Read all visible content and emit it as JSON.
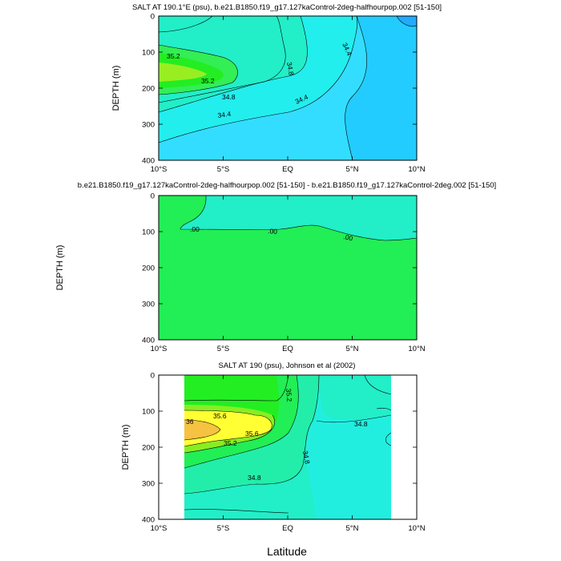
{
  "chart_data": [
    {
      "type": "contour",
      "title": "SALT AT 190.1°E (psu), b.e21.B1850.f19_g17.127kaControl-2deg-halfhourpop.002 [51-150]",
      "ylabel": "DEPTH (m)",
      "xlabel": "",
      "x_ticks": [
        "10°S",
        "5°S",
        "EQ",
        "5°N",
        "10°N"
      ],
      "y_ticks": [
        "0",
        "100",
        "200",
        "300",
        "400"
      ],
      "xlim": [
        -10,
        10
      ],
      "ylim": [
        400,
        0
      ],
      "contour_labels": [
        "35.2",
        "35.2",
        "34.8",
        "34.8",
        "34.4",
        "34.4",
        "34.4"
      ]
    },
    {
      "type": "contour",
      "title": "b.e21.B1850.f19_g17.127kaControl-2deg-halfhourpop.002 [51-150] - b.e21.B1850.f19_g17.127kaControl-2deg.002 [51-150]",
      "ylabel": "DEPTH (m)",
      "xlabel": "",
      "x_ticks": [
        "10°S",
        "5°S",
        "EQ",
        "5°N",
        "10°N"
      ],
      "y_ticks": [
        "0",
        "100",
        "200",
        "300",
        "400"
      ],
      "xlim": [
        -10,
        10
      ],
      "ylim": [
        400,
        0
      ],
      "contour_labels": [
        ".00",
        ".00",
        ".00"
      ]
    },
    {
      "type": "contour",
      "title": "SALT AT 190 (psu), Johnson et al (2002)",
      "ylabel": "DEPTH (m)",
      "xlabel": "Latitude",
      "x_ticks": [
        "10°S",
        "5°S",
        "EQ",
        "5°N",
        "10°N"
      ],
      "y_ticks": [
        "0",
        "100",
        "200",
        "300",
        "400"
      ],
      "xlim": [
        -10,
        10
      ],
      "ylim": [
        400,
        0
      ],
      "contour_labels": [
        "35.2",
        "35.6",
        "36",
        "35.6",
        "35.2",
        "34.8",
        "34.8",
        "34.8"
      ]
    }
  ],
  "colors": {
    "green": "#33ee55",
    "bright_green": "#22ee22",
    "light_green": "#99ee22",
    "yellow": "#ffff33",
    "orange": "#f5c242",
    "teal_green": "#22eea0",
    "cyan_green": "#22eec8",
    "aqua": "#22eeee",
    "cyan": "#33ddff",
    "sky": "#22ccff",
    "blue": "#22aaff"
  }
}
